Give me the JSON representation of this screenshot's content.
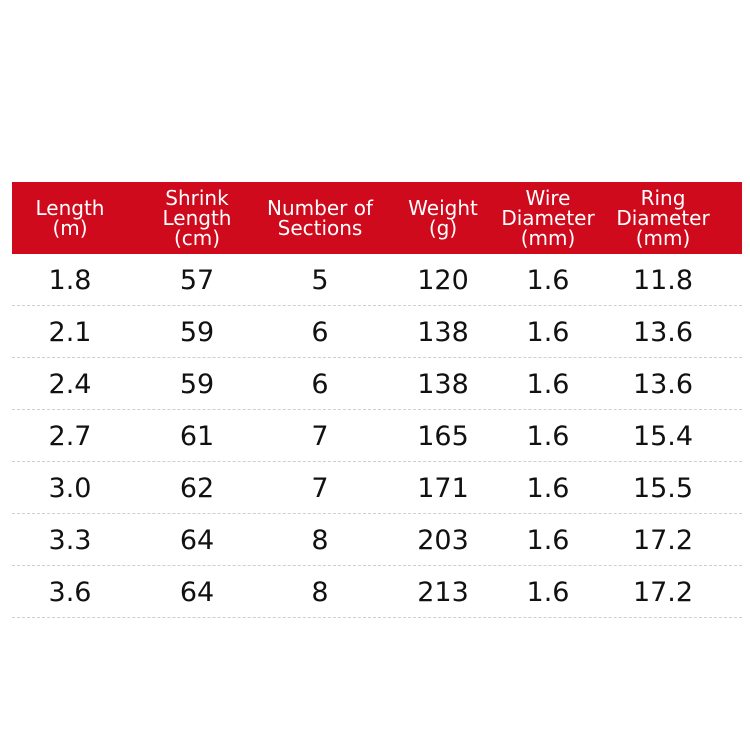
{
  "table": {
    "header": [
      [
        "Length",
        "(m)"
      ],
      [
        "Shrink",
        "Length",
        "(cm)"
      ],
      [
        "Number of",
        "Sections"
      ],
      [
        "Weight",
        "(g)"
      ],
      [
        "Wire",
        "Diameter",
        "(mm)"
      ],
      [
        "Ring",
        "Diameter",
        "(mm)"
      ]
    ],
    "rows": [
      [
        "1.8",
        "57",
        "5",
        "120",
        "1.6",
        "11.8"
      ],
      [
        "2.1",
        "59",
        "6",
        "138",
        "1.6",
        "13.6"
      ],
      [
        "2.4",
        "59",
        "6",
        "138",
        "1.6",
        "13.6"
      ],
      [
        "2.7",
        "61",
        "7",
        "165",
        "1.6",
        "15.4"
      ],
      [
        "3.0",
        "62",
        "7",
        "171",
        "1.6",
        "15.5"
      ],
      [
        "3.3",
        "64",
        "8",
        "203",
        "1.6",
        "17.2"
      ],
      [
        "3.6",
        "64",
        "8",
        "213",
        "1.6",
        "17.2"
      ]
    ]
  }
}
